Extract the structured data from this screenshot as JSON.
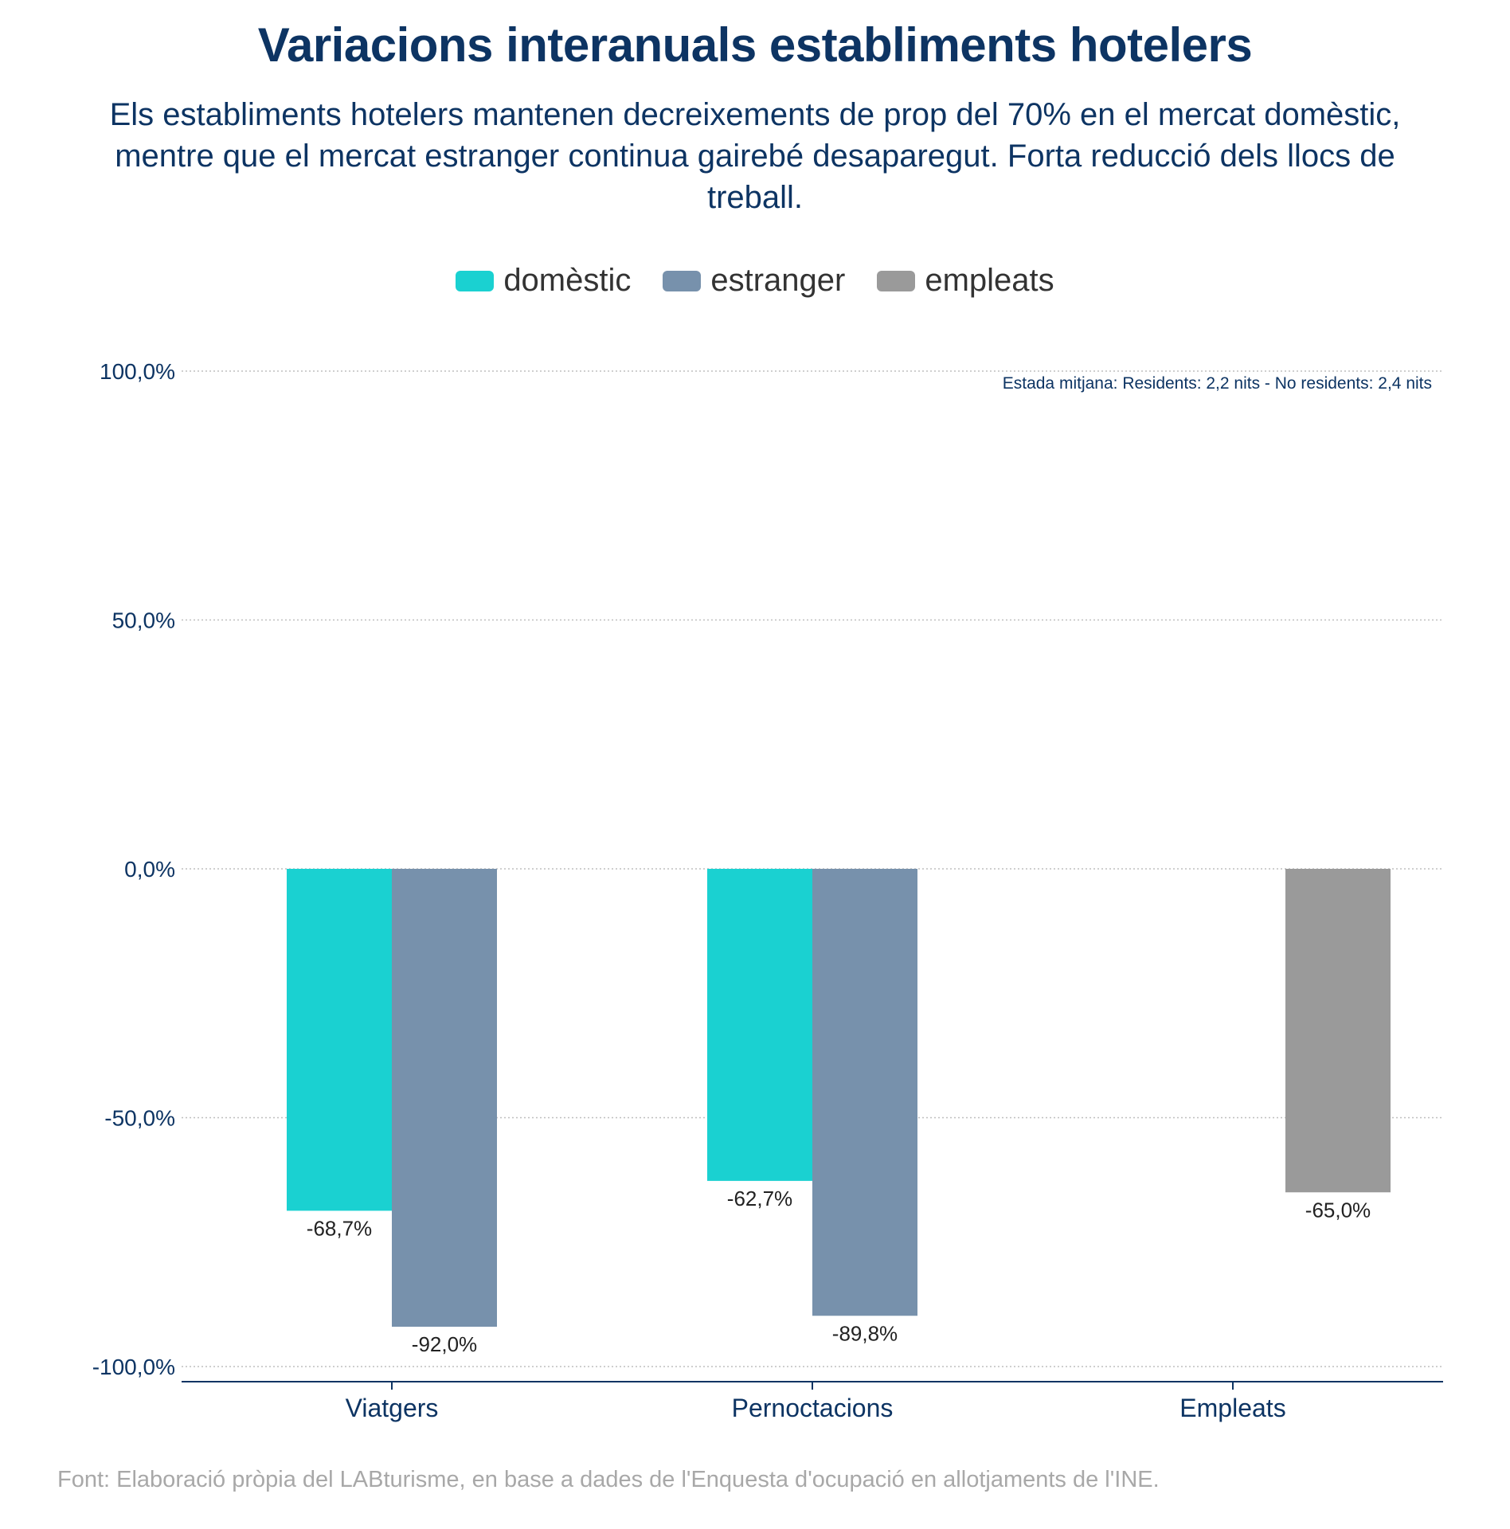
{
  "chart_data": {
    "type": "bar",
    "title": "Variacions interanuals establiments hotelers",
    "subtitle": "Els establiments hotelers mantenen decreixements de prop del 70% en el mercat domèstic, mentre que el mercat estranger continua gairebé desaparegut. Forta reducció dels llocs de treball.",
    "categories": [
      "Viatgers",
      "Pernoctacions",
      "Empleats"
    ],
    "series": [
      {
        "name": "domèstic",
        "color": "#1ad1d1",
        "values": [
          -68.7,
          -62.7,
          null
        ],
        "labels": [
          "-68,7%",
          "-62,7%",
          null
        ]
      },
      {
        "name": "estranger",
        "color": "#7791ac",
        "values": [
          -92.0,
          -89.8,
          null
        ],
        "labels": [
          "-92,0%",
          "-89,8%",
          null
        ]
      },
      {
        "name": "empleats",
        "color": "#9a9a9a",
        "values": [
          null,
          null,
          -65.0
        ],
        "labels": [
          null,
          null,
          "-65,0%"
        ]
      }
    ],
    "ylim": [
      -100,
      100
    ],
    "yticks": [
      100,
      50,
      0,
      -50,
      -100
    ],
    "ytick_labels": [
      "100,0%",
      "50,0%",
      "0,0%",
      "-50,0%",
      "-100,0%"
    ],
    "xlabel": "",
    "ylabel": "",
    "grid": true,
    "legend_position": "top-center",
    "annotation": "Estada mitjana: Residents: 2,2 nits - No residents: 2,4 nits"
  },
  "footer": {
    "source": "Font: Elaboració pròpia del LABturisme, en base a dades de l'Enquesta d'ocupació en allotjaments de l'INE."
  },
  "colors": {
    "title": "#0d3463",
    "axis": "#0d3463",
    "grid": "#bfbfbf",
    "label": "#222222",
    "source": "#a8a8a8"
  }
}
